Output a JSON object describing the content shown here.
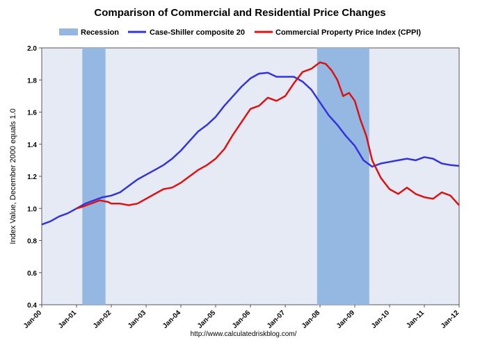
{
  "chart_data": {
    "type": "line",
    "title": "Comparison of Commercial and Residential Price Changes",
    "ylabel": "Index Value, December 2000 equals 1.0",
    "xlabel": "",
    "source": "http://www.calculatedriskblog.com/",
    "ylim": [
      0.4,
      2.0
    ],
    "yticks": [
      "0.4",
      "0.6",
      "0.8",
      "1.0",
      "1.2",
      "1.4",
      "1.6",
      "1.8",
      "2.0"
    ],
    "xlim": [
      "2000-01",
      "2012-01"
    ],
    "xticks": [
      {
        "label": "Jan-00",
        "date": "2000-01"
      },
      {
        "label": "Jan-01",
        "date": "2001-01"
      },
      {
        "label": "Jan-02",
        "date": "2002-01"
      },
      {
        "label": "Jan-03",
        "date": "2003-01"
      },
      {
        "label": "Jan-04",
        "date": "2004-01"
      },
      {
        "label": "Jan-05",
        "date": "2005-01"
      },
      {
        "label": "Jan-06",
        "date": "2006-01"
      },
      {
        "label": "Jan-07",
        "date": "2007-01"
      },
      {
        "label": "Jan-08",
        "date": "2008-01"
      },
      {
        "label": "Jan-09",
        "date": "2009-01"
      },
      {
        "label": "Jan-10",
        "date": "2010-01"
      },
      {
        "label": "Jan-11",
        "date": "2011-01"
      },
      {
        "label": "Jan-12",
        "date": "2012-01"
      }
    ],
    "grid": false,
    "legend_position": "top",
    "plot_background": "#e6eaf5",
    "recessions": [
      {
        "start": "2001-03",
        "end": "2001-11"
      },
      {
        "start": "2007-12",
        "end": "2009-06"
      }
    ],
    "legend": [
      {
        "name": "Recession",
        "kind": "patch",
        "color": "#95b8e3"
      },
      {
        "name": "Case-Shiller composite 20",
        "kind": "line",
        "color": "#3333dd"
      },
      {
        "name": "Commercial Property Price Index (CPPI)",
        "kind": "line",
        "color": "#dd1111"
      }
    ],
    "series": [
      {
        "name": "Case-Shiller composite 20",
        "color": "#3333dd",
        "points": [
          [
            "2000-01",
            0.9
          ],
          [
            "2000-04",
            0.92
          ],
          [
            "2000-07",
            0.95
          ],
          [
            "2000-10",
            0.97
          ],
          [
            "2001-01",
            1.0
          ],
          [
            "2001-04",
            1.03
          ],
          [
            "2001-07",
            1.05
          ],
          [
            "2001-10",
            1.07
          ],
          [
            "2002-01",
            1.08
          ],
          [
            "2002-04",
            1.1
          ],
          [
            "2002-07",
            1.14
          ],
          [
            "2002-10",
            1.18
          ],
          [
            "2003-01",
            1.21
          ],
          [
            "2003-04",
            1.24
          ],
          [
            "2003-07",
            1.27
          ],
          [
            "2003-10",
            1.31
          ],
          [
            "2004-01",
            1.36
          ],
          [
            "2004-04",
            1.42
          ],
          [
            "2004-07",
            1.48
          ],
          [
            "2004-10",
            1.52
          ],
          [
            "2005-01",
            1.57
          ],
          [
            "2005-04",
            1.64
          ],
          [
            "2005-07",
            1.7
          ],
          [
            "2005-10",
            1.76
          ],
          [
            "2006-01",
            1.81
          ],
          [
            "2006-04",
            1.84
          ],
          [
            "2006-07",
            1.845
          ],
          [
            "2006-10",
            1.82
          ],
          [
            "2007-01",
            1.82
          ],
          [
            "2007-04",
            1.82
          ],
          [
            "2007-07",
            1.79
          ],
          [
            "2007-10",
            1.74
          ],
          [
            "2008-01",
            1.66
          ],
          [
            "2008-04",
            1.58
          ],
          [
            "2008-07",
            1.52
          ],
          [
            "2008-10",
            1.45
          ],
          [
            "2009-01",
            1.39
          ],
          [
            "2009-04",
            1.3
          ],
          [
            "2009-07",
            1.26
          ],
          [
            "2009-10",
            1.28
          ],
          [
            "2010-01",
            1.29
          ],
          [
            "2010-04",
            1.3
          ],
          [
            "2010-07",
            1.31
          ],
          [
            "2010-10",
            1.3
          ],
          [
            "2011-01",
            1.32
          ],
          [
            "2011-04",
            1.31
          ],
          [
            "2011-07",
            1.28
          ],
          [
            "2011-10",
            1.27
          ],
          [
            "2012-01",
            1.265
          ]
        ]
      },
      {
        "name": "Commercial Property Price Index (CPPI)",
        "color": "#dd1111",
        "points": [
          [
            "2001-01",
            1.0
          ],
          [
            "2001-03",
            1.01
          ],
          [
            "2001-06",
            1.03
          ],
          [
            "2001-09",
            1.05
          ],
          [
            "2001-12",
            1.04
          ],
          [
            "2002-01",
            1.03
          ],
          [
            "2002-04",
            1.03
          ],
          [
            "2002-07",
            1.02
          ],
          [
            "2002-10",
            1.03
          ],
          [
            "2003-01",
            1.06
          ],
          [
            "2003-04",
            1.09
          ],
          [
            "2003-07",
            1.12
          ],
          [
            "2003-10",
            1.13
          ],
          [
            "2004-01",
            1.16
          ],
          [
            "2004-04",
            1.2
          ],
          [
            "2004-07",
            1.24
          ],
          [
            "2004-10",
            1.27
          ],
          [
            "2005-01",
            1.31
          ],
          [
            "2005-04",
            1.37
          ],
          [
            "2005-07",
            1.46
          ],
          [
            "2005-10",
            1.54
          ],
          [
            "2006-01",
            1.62
          ],
          [
            "2006-04",
            1.64
          ],
          [
            "2006-07",
            1.69
          ],
          [
            "2006-10",
            1.67
          ],
          [
            "2007-01",
            1.7
          ],
          [
            "2007-04",
            1.78
          ],
          [
            "2007-07",
            1.85
          ],
          [
            "2007-10",
            1.87
          ],
          [
            "2008-01",
            1.91
          ],
          [
            "2008-03",
            1.9
          ],
          [
            "2008-05",
            1.86
          ],
          [
            "2008-07",
            1.8
          ],
          [
            "2008-09",
            1.7
          ],
          [
            "2008-11",
            1.72
          ],
          [
            "2009-01",
            1.67
          ],
          [
            "2009-03",
            1.55
          ],
          [
            "2009-05",
            1.45
          ],
          [
            "2009-07",
            1.3
          ],
          [
            "2009-10",
            1.19
          ],
          [
            "2010-01",
            1.12
          ],
          [
            "2010-04",
            1.09
          ],
          [
            "2010-07",
            1.13
          ],
          [
            "2010-10",
            1.09
          ],
          [
            "2011-01",
            1.07
          ],
          [
            "2011-04",
            1.06
          ],
          [
            "2011-07",
            1.1
          ],
          [
            "2011-10",
            1.08
          ],
          [
            "2012-01",
            1.02
          ]
        ]
      }
    ]
  }
}
